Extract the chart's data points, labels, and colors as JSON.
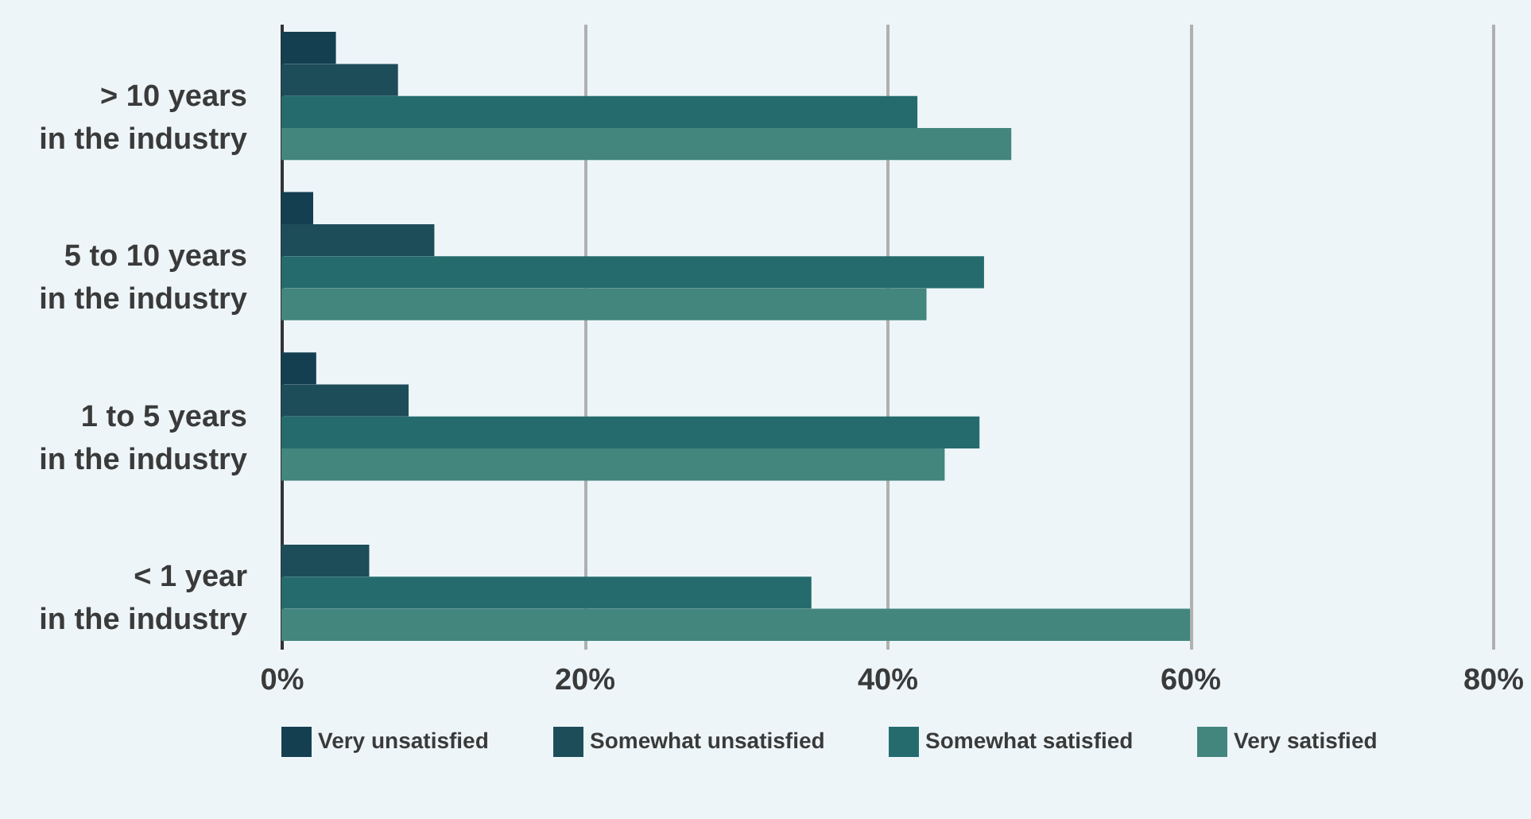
{
  "chart_data": {
    "type": "bar",
    "orientation": "horizontal",
    "categories": [
      "> 10 years\nin the industry",
      "5 to 10 years\nin the industry",
      "1 to 5 years\nin the industry",
      "< 1 year\nin the industry"
    ],
    "series": [
      {
        "name": "Very unsatisfied",
        "color": "#143f50",
        "values": [
          3.6,
          2.1,
          2.3,
          0
        ]
      },
      {
        "name": "Somewhat unsatisfied",
        "color": "#1e4d5a",
        "values": [
          7.7,
          10.1,
          8.4,
          5.8
        ]
      },
      {
        "name": "Somewhat satisfied",
        "color": "#256b6e",
        "values": [
          42.0,
          46.4,
          46.1,
          35.0
        ]
      },
      {
        "name": "Very satisfied",
        "color": "#42867e",
        "values": [
          48.2,
          42.6,
          43.8,
          60.0
        ]
      }
    ],
    "xlim": [
      0,
      80
    ],
    "xticks": [
      {
        "value": 0,
        "label": "0%"
      },
      {
        "value": 20,
        "label": "20%"
      },
      {
        "value": 40,
        "label": "40%"
      },
      {
        "value": 60,
        "label": "60%"
      },
      {
        "value": 80,
        "label": "80%"
      }
    ],
    "grid": "x",
    "legend": "bottom"
  }
}
